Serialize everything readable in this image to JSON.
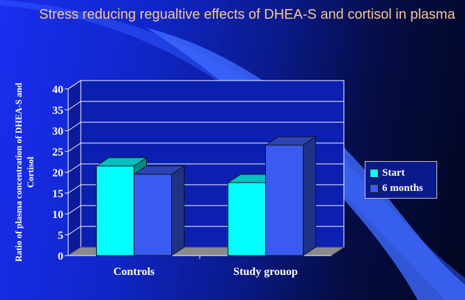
{
  "chart_data": {
    "type": "bar",
    "title": "Stress reducing regualtive effects of DHEA-S and cortisol in plasma",
    "ylabel": "Ratio of plasma concentration of DHEA-S and Cortisol",
    "xlabel": "",
    "categories": [
      "Controls",
      "Study grouop"
    ],
    "series": [
      {
        "name": "Start",
        "values": [
          21.5,
          17.5
        ],
        "color": "#00ffff"
      },
      {
        "name": "6 months",
        "values": [
          19.5,
          26.5
        ],
        "color": "#3a5bf0"
      }
    ],
    "ylim": [
      0,
      40
    ],
    "yticks": [
      0,
      5,
      10,
      15,
      20,
      25,
      30,
      35,
      40
    ],
    "grid": true,
    "three_d": true,
    "legend_position": "right"
  }
}
